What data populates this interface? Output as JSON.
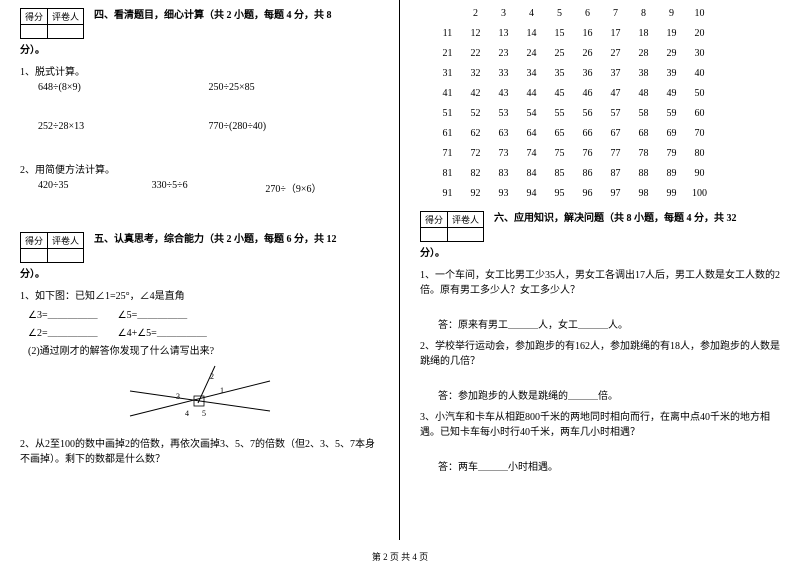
{
  "scoreBox": {
    "score": "得分",
    "judge": "评卷人"
  },
  "section4": {
    "title": "四、看清题目，细心计算（共 2 小题，每题 4 分，共 8",
    "suffix": "分）。",
    "q1": "1、脱式计算。",
    "q1a": "648÷(8×9)",
    "q1b": "250÷25×85",
    "q1c": "252÷28×13",
    "q1d": "770÷(280÷40)",
    "q2": "2、用简便方法计算。",
    "q2a": "420÷35",
    "q2b": "330÷5÷6",
    "q2c": "270÷（9×6）"
  },
  "section5": {
    "title": "五、认真思考，综合能力（共 2 小题，每题 6 分，共 12",
    "suffix": "分）。",
    "q1": "1、如下图：已知∠1=25°，∠4是直角",
    "q1a": "∠3=＿＿＿＿＿　　∠5=＿＿＿＿＿",
    "q1b": "∠2=＿＿＿＿＿　　∠4+∠5=＿＿＿＿＿",
    "q1c": "(2)通过刚才的解答你发现了什么请写出来?",
    "angles": {
      "n1": "1",
      "n2": "2",
      "n3": "3",
      "n4": "4",
      "n5": "5"
    },
    "q2": "2、从2至100的数中画掉2的倍数，再依次画掉3、5、7的倍数（但2、3、5、7本身不画掉）。剩下的数都是什么数？"
  },
  "section6": {
    "title": "六、应用知识，解决问题（共 8 小题，每题 4 分，共 32",
    "suffix": "分）。",
    "q1": "1、一个车间，女工比男工少35人，男女工各调出17人后，男工人数是女工人数的2倍。原有男工多少人？女工多少人？",
    "a1": "答：原来有男工＿＿＿人，女工＿＿＿人。",
    "q2": "2、学校举行运动会，参加跑步的有162人，参加跳绳的有18人，参加跑步的人数是跳绳的几倍？",
    "a2": "答：参加跑步的人数是跳绳的＿＿＿倍。",
    "q3": "3、小汽车和卡车从相距800千米的两地同时相向而行，在离中点40千米的地方相遇。已知卡车每小时行40千米，两车几小时相遇？",
    "a3": "答：两车＿＿＿小时相遇。"
  },
  "grid": {
    "rows": [
      [
        "",
        "2",
        "3",
        "4",
        "5",
        "6",
        "7",
        "8",
        "9",
        "10"
      ],
      [
        "11",
        "12",
        "13",
        "14",
        "15",
        "16",
        "17",
        "18",
        "19",
        "20"
      ],
      [
        "21",
        "22",
        "23",
        "24",
        "25",
        "26",
        "27",
        "28",
        "29",
        "30"
      ],
      [
        "31",
        "32",
        "33",
        "34",
        "35",
        "36",
        "37",
        "38",
        "39",
        "40"
      ],
      [
        "41",
        "42",
        "43",
        "44",
        "45",
        "46",
        "47",
        "48",
        "49",
        "50"
      ],
      [
        "51",
        "52",
        "53",
        "54",
        "55",
        "56",
        "57",
        "58",
        "59",
        "60"
      ],
      [
        "61",
        "62",
        "63",
        "64",
        "65",
        "66",
        "67",
        "68",
        "69",
        "70"
      ],
      [
        "71",
        "72",
        "73",
        "74",
        "75",
        "76",
        "77",
        "78",
        "79",
        "80"
      ],
      [
        "81",
        "82",
        "83",
        "84",
        "85",
        "86",
        "87",
        "88",
        "89",
        "90"
      ],
      [
        "91",
        "92",
        "93",
        "94",
        "95",
        "96",
        "97",
        "98",
        "99",
        "100"
      ]
    ]
  },
  "footer": "第 2 页 共 4 页"
}
